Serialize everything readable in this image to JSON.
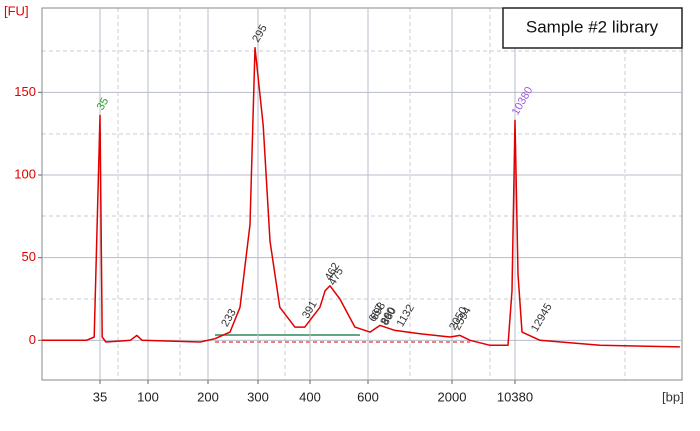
{
  "chart_data": {
    "type": "line",
    "title": "Sample #2 library",
    "y_label": "[FU]",
    "x_label": "[bp]",
    "x": [
      5,
      28,
      32,
      35,
      38,
      43,
      76,
      85,
      92,
      187,
      214,
      244,
      264,
      284,
      294,
      310,
      323,
      342,
      371,
      390,
      434,
      452,
      469,
      503,
      555,
      633,
      800,
      1050,
      1467,
      1967,
      3064,
      4394,
      7054,
      9449,
      9980,
      10380,
      10779,
      11311,
      13705,
      21685,
      32325
    ],
    "series": [
      {
        "color": "#e00000",
        "values": [
          0,
          0,
          2,
          136,
          2,
          -1,
          0,
          3,
          0,
          -1,
          1,
          5,
          20,
          70,
          177,
          130,
          60,
          20,
          8,
          8,
          20,
          30,
          33,
          25,
          8,
          5,
          9,
          6,
          4,
          2,
          3,
          0,
          -3,
          -3,
          30,
          133,
          40,
          5,
          0,
          -3,
          -4
        ]
      }
    ],
    "peaks": [
      {
        "x": 35,
        "y": 136,
        "color": "#2e9a2e"
      },
      {
        "x": 233,
        "y": 5,
        "color": "#333333"
      },
      {
        "x": 295,
        "y": 177,
        "color": "#333333"
      },
      {
        "x": 391,
        "y": 10,
        "color": "#333333"
      },
      {
        "x": 462,
        "y": 33,
        "color": "#333333"
      },
      {
        "x": 475,
        "y": 30,
        "color": "#333333"
      },
      {
        "x": 667,
        "y": 8,
        "color": "#333333"
      },
      {
        "x": 698,
        "y": 9,
        "color": "#333333"
      },
      {
        "x": 860,
        "y": 6,
        "color": "#333333"
      },
      {
        "x": 880,
        "y": 6,
        "color": "#333333"
      },
      {
        "x": 1132,
        "y": 5,
        "color": "#333333"
      },
      {
        "x": 2050,
        "y": 3,
        "color": "#333333"
      },
      {
        "x": 2594,
        "y": 3,
        "color": "#333333"
      },
      {
        "x": 10380,
        "y": 133,
        "color": "#9b59d9"
      },
      {
        "x": 12945,
        "y": 2,
        "color": "#333333"
      }
    ],
    "xlim": [
      5,
      32600
    ],
    "xticks": [
      35,
      100,
      200,
      300,
      400,
      600,
      2000,
      10380
    ],
    "ylim": [
      -24,
      201
    ],
    "yticks": [
      0,
      50,
      100,
      150
    ],
    "grid": true
  }
}
